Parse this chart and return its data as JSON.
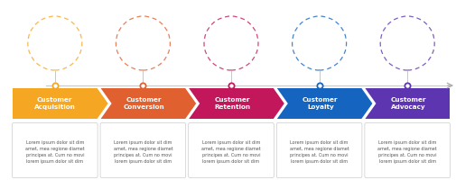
{
  "steps": [
    {
      "label": "Customer\nAcquisition",
      "color": "#F5A623",
      "circle_color": "#F5A623"
    },
    {
      "label": "Customer\nConversion",
      "color": "#E06030",
      "circle_color": "#E06030"
    },
    {
      "label": "Customer\nRetention",
      "color": "#C2185B",
      "circle_color": "#C2185B"
    },
    {
      "label": "Customer\nLoyalty",
      "color": "#1565C0",
      "circle_color": "#1565C0"
    },
    {
      "label": "Customer\nAdvocacy",
      "color": "#5E35B1",
      "circle_color": "#5E35B1"
    }
  ],
  "lorem_text": "Lorem ipsum dolor sit dim\namet, mea regione diamet\nprincipes at. Cum no movi\nlorem ipsum dolor sit dim",
  "background_color": "#ffffff",
  "fig_w": 5.05,
  "fig_h": 2.0
}
